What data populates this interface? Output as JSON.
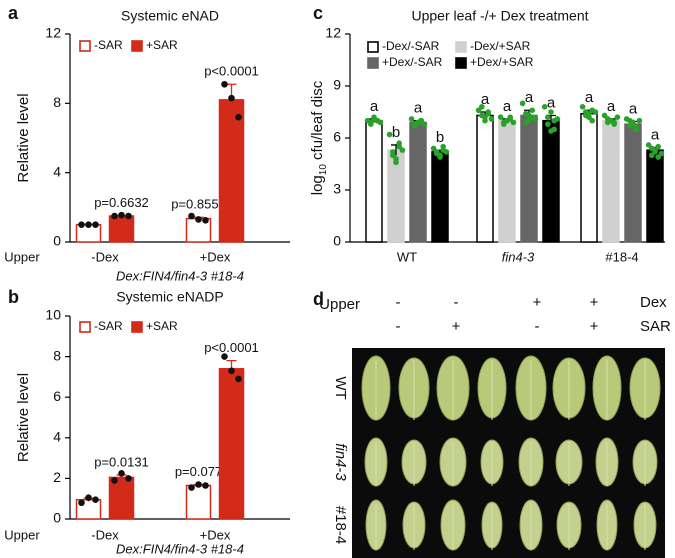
{
  "chart_data": [
    {
      "type": "bar",
      "panel": "a",
      "title": "Systemic eNAD",
      "ylabel": "Relative level",
      "x_header": "Upper",
      "xlabel": "Dex:FIN4/fin4-3 #18-4",
      "categories": [
        "-Dex",
        "+Dex"
      ],
      "ylim": [
        0,
        12
      ],
      "yticks": [
        0,
        4,
        8,
        12
      ],
      "series": [
        {
          "name": "-SAR",
          "color": "#ffffff",
          "edge": "#d42a1a",
          "values": [
            1.0,
            1.35
          ],
          "errors": [
            0.02,
            0.08
          ],
          "points": [
            [
              1.0,
              1.0,
              1.0
            ],
            [
              1.5,
              1.3,
              1.25
            ]
          ],
          "p_values": [
            null,
            "p=0.8555"
          ]
        },
        {
          "name": "+SAR",
          "color": "#d42a1a",
          "edge": "#d42a1a",
          "values": [
            1.5,
            8.2
          ],
          "errors": [
            0.03,
            0.9
          ],
          "points": [
            [
              1.5,
              1.55,
              1.5
            ],
            [
              9.1,
              8.3,
              7.2
            ]
          ],
          "p_values": [
            "p=0.6632",
            "p<0.0001"
          ]
        }
      ]
    },
    {
      "type": "bar",
      "panel": "b",
      "title": "Systemic eNADP",
      "ylabel": "Relative level",
      "x_header": "Upper",
      "xlabel": "Dex:FIN4/fin4-3 #18-4",
      "categories": [
        "-Dex",
        "+Dex"
      ],
      "ylim": [
        0,
        10
      ],
      "yticks": [
        0,
        2,
        4,
        6,
        8,
        10
      ],
      "series": [
        {
          "name": "-SAR",
          "color": "#ffffff",
          "edge": "#d42a1a",
          "values": [
            0.95,
            1.65
          ],
          "errors": [
            0.08,
            0.05
          ],
          "points": [
            [
              0.8,
              1.05,
              0.95
            ],
            [
              1.55,
              1.7,
              1.65
            ]
          ],
          "p_values": [
            null,
            "p=0.077"
          ]
        },
        {
          "name": "+SAR",
          "color": "#d42a1a",
          "edge": "#d42a1a",
          "values": [
            2.05,
            7.4
          ],
          "errors": [
            0.12,
            0.4
          ],
          "points": [
            [
              1.9,
              2.25,
              2.0
            ],
            [
              8.0,
              7.3,
              6.9
            ]
          ],
          "p_values": [
            "p=0.0131",
            "p<0.0001"
          ]
        }
      ]
    },
    {
      "type": "bar",
      "panel": "c",
      "title": "Upper leaf -/+ Dex treatment",
      "ylabel_parts": [
        "log",
        "10",
        " cfu/leaf disc"
      ],
      "categories": [
        "WT",
        "fin4-3",
        "#18-4"
      ],
      "category_style": [
        "normal",
        "italic",
        "normal"
      ],
      "ylim": [
        0,
        12
      ],
      "yticks": [
        0,
        3,
        6,
        9,
        12
      ],
      "point_color": "#2aa12a",
      "series": [
        {
          "name": "-Dex/-SAR",
          "color": "#ffffff",
          "edge": "#000000",
          "values": [
            7.0,
            7.3,
            7.4
          ],
          "errors": [
            0.1,
            0.2,
            0.2
          ],
          "points": [
            [
              7.0,
              6.9,
              7.1,
              7.0,
              6.8,
              7.2,
              7.0,
              6.9
            ],
            [
              7.6,
              7.3,
              7.0,
              7.5,
              7.8,
              7.2,
              7.4,
              7.1
            ],
            [
              7.8,
              7.5,
              7.2,
              7.6,
              7.3,
              7.4,
              7.0,
              7.5
            ]
          ],
          "letters": [
            "a",
            "a",
            "a"
          ]
        },
        {
          "name": "-Dex/+SAR",
          "color": "#d0d0d0",
          "edge": "#d0d0d0",
          "values": [
            5.3,
            7.0,
            7.0
          ],
          "errors": [
            0.3,
            0.1,
            0.1
          ],
          "points": [
            [
              6.2,
              5.0,
              4.6,
              5.5,
              5.2,
              4.8,
              5.7,
              5.3
            ],
            [
              7.2,
              6.9,
              7.0,
              7.1,
              6.8,
              7.0,
              7.2,
              6.9
            ],
            [
              7.3,
              6.9,
              7.0,
              6.8,
              7.1,
              7.0,
              6.9,
              7.2
            ]
          ],
          "letters": [
            "b",
            "a",
            "a"
          ]
        },
        {
          "name": "+Dex/-SAR",
          "color": "#666666",
          "edge": "#666666",
          "values": [
            6.9,
            7.3,
            6.8
          ],
          "errors": [
            0.1,
            0.3,
            0.15
          ],
          "points": [
            [
              7.1,
              6.8,
              6.9,
              7.0,
              6.7,
              6.9,
              7.0,
              6.8
            ],
            [
              8.0,
              7.4,
              7.0,
              7.6,
              6.9,
              7.3,
              7.2,
              7.1
            ],
            [
              7.1,
              6.7,
              6.9,
              6.5,
              7.0,
              6.8,
              6.6,
              7.0
            ]
          ],
          "letters": [
            "a",
            "a",
            "a"
          ]
        },
        {
          "name": "+Dex/+SAR",
          "color": "#000000",
          "edge": "#000000",
          "values": [
            5.2,
            7.0,
            5.3
          ],
          "errors": [
            0.1,
            0.3,
            0.15
          ],
          "points": [
            [
              5.4,
              5.1,
              5.0,
              5.3,
              5.2,
              4.9,
              5.5,
              5.2
            ],
            [
              7.8,
              7.2,
              6.4,
              7.0,
              6.8,
              7.5,
              6.5,
              7.1
            ],
            [
              5.6,
              5.0,
              5.3,
              4.9,
              5.4,
              5.2,
              5.5,
              5.1
            ]
          ],
          "letters": [
            "b",
            "a",
            "a"
          ]
        }
      ]
    }
  ],
  "photo_panel": {
    "panel": "d",
    "row_header": "Upper",
    "treatments": [
      {
        "name": "Dex",
        "signs": [
          "-",
          "-",
          "+",
          "+"
        ]
      },
      {
        "name": "SAR",
        "signs": [
          "-",
          "+",
          "-",
          "+"
        ]
      }
    ],
    "rows": [
      "WT",
      "fin4-3",
      "#18-4"
    ],
    "row_style": [
      "normal",
      "italic",
      "normal"
    ]
  }
}
